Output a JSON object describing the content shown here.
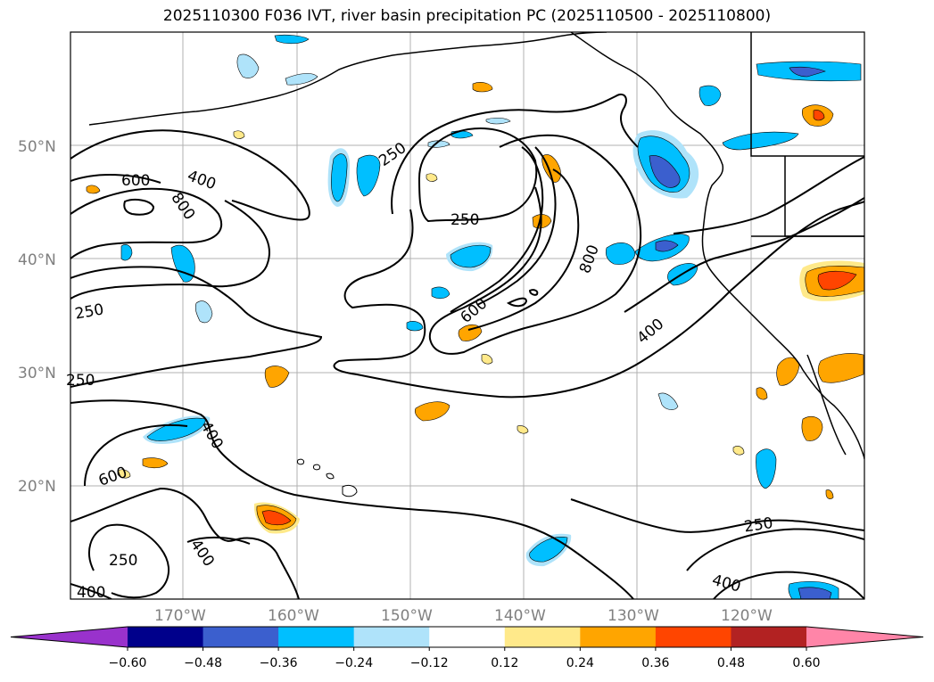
{
  "title": "2025110300 F036 IVT, river basin precipitation PC (2025110500 - 2025110800)",
  "lat_labels": [
    "50°N",
    "40°N",
    "30°N",
    "20°N"
  ],
  "lon_labels": [
    "170°W",
    "160°W",
    "150°W",
    "140°W",
    "130°W",
    "120°W"
  ],
  "ivt_contour_levels": [
    "250",
    "400",
    "600",
    "800"
  ],
  "contour_labels": [
    {
      "text": "600",
      "level": 600
    },
    {
      "text": "400",
      "level": 400
    },
    {
      "text": "800",
      "level": 800
    },
    {
      "text": "250",
      "level": 250
    },
    {
      "text": "250",
      "level": 250
    },
    {
      "text": "250",
      "level": 250
    },
    {
      "text": "250",
      "level": 250
    },
    {
      "text": "600",
      "level": 600
    },
    {
      "text": "800",
      "level": 800
    },
    {
      "text": "400",
      "level": 400
    },
    {
      "text": "400",
      "level": 400
    },
    {
      "text": "600",
      "level": 600
    },
    {
      "text": "250",
      "level": 250
    },
    {
      "text": "400",
      "level": 400
    },
    {
      "text": "400",
      "level": 400
    },
    {
      "text": "250",
      "level": 250
    },
    {
      "text": "400",
      "level": 400
    }
  ],
  "colorbar": {
    "ticks": [
      "−0.60",
      "−0.48",
      "−0.36",
      "−0.24",
      "−0.12",
      "0.12",
      "0.24",
      "0.36",
      "0.48",
      "0.60"
    ],
    "colors": [
      "#9932cc",
      "#00008b",
      "#3b5fce",
      "#00bfff",
      "#afe3fa",
      "#ffffff",
      "#ffe98a",
      "#ffa500",
      "#ff4500",
      "#b22222",
      "#ff85a8"
    ]
  },
  "colors": {
    "contour": "#000000",
    "grid": "#b0b0b0",
    "coast": "#000000"
  }
}
